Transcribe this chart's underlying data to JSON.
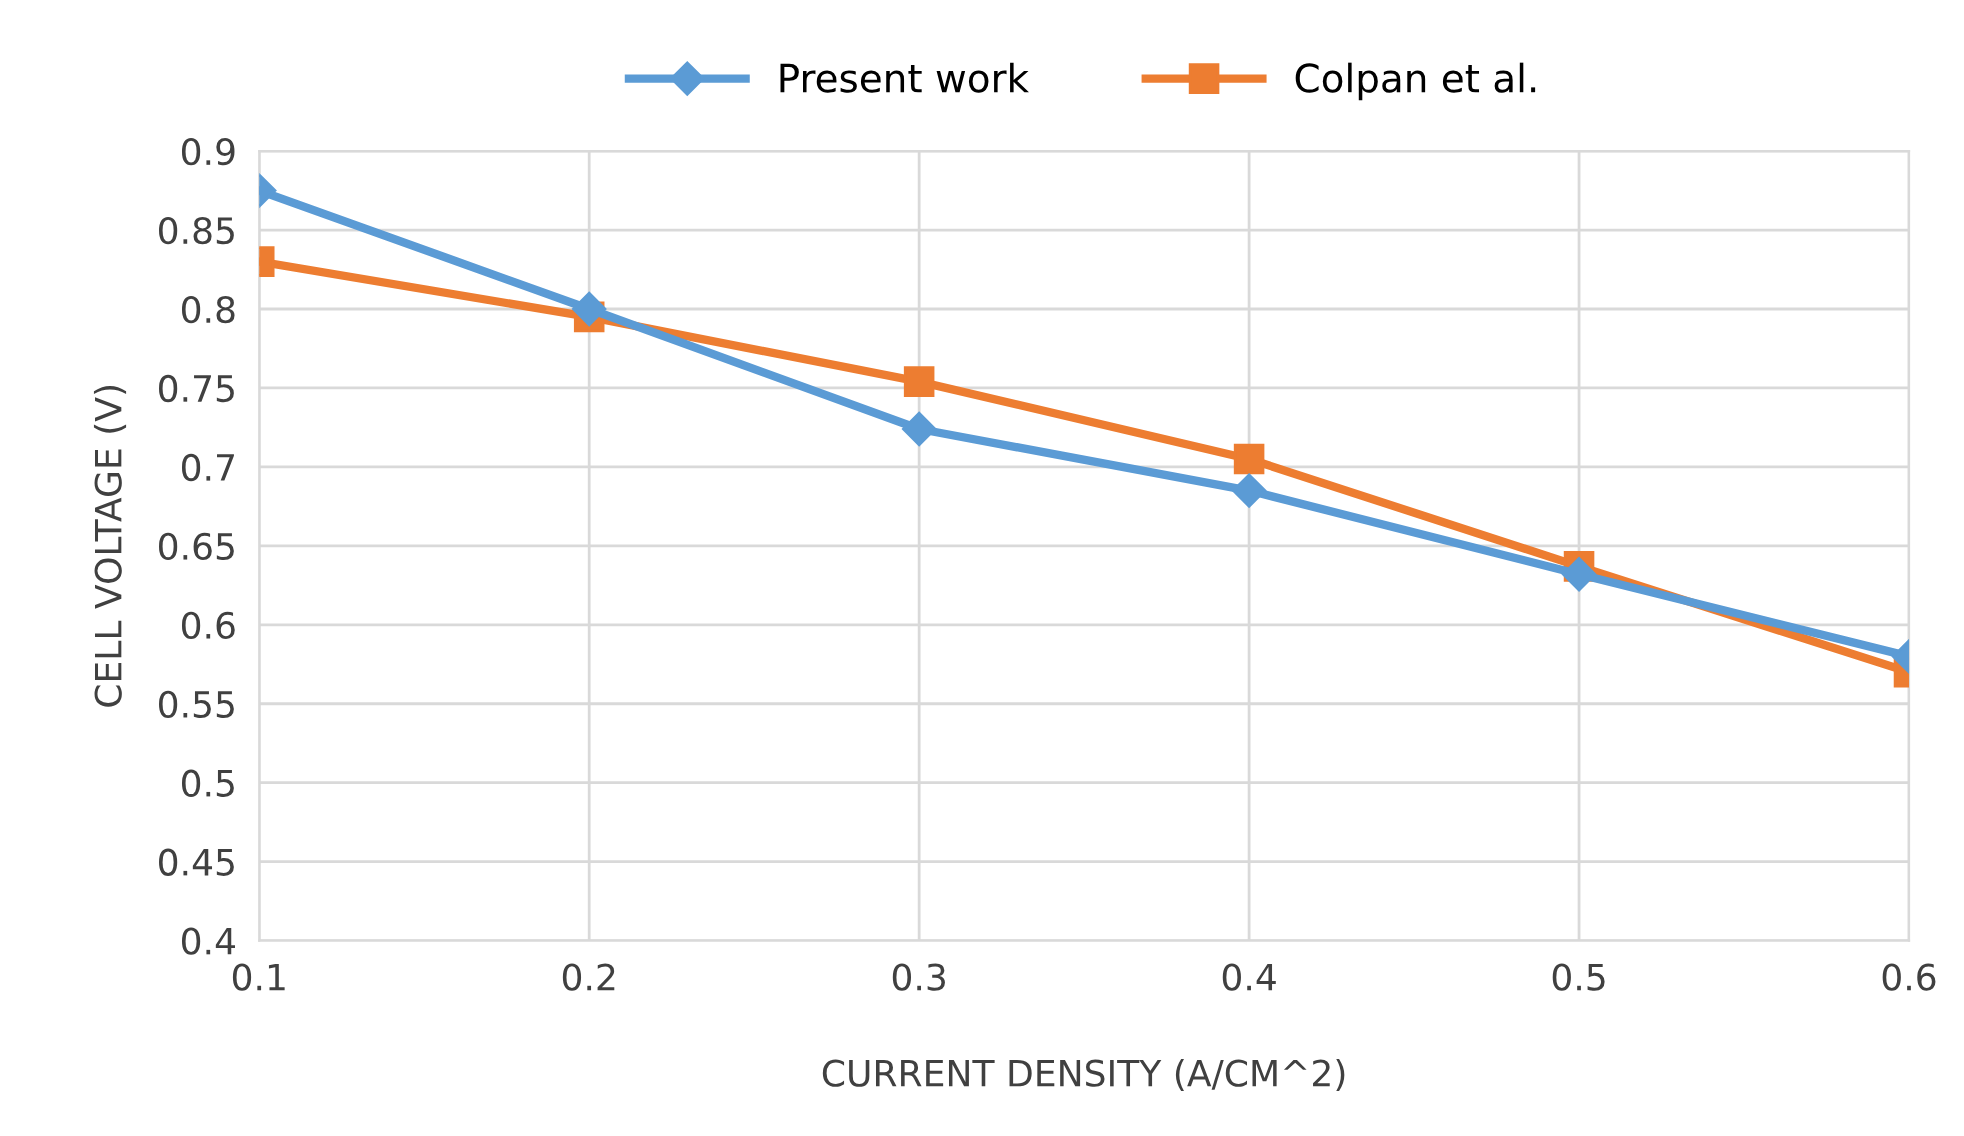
{
  "chart_data": {
    "type": "line",
    "xlabel": "CURRENT DENSITY (A/CM^2)",
    "ylabel": "CELL VOLTAGE (V)",
    "x": [
      0.1,
      0.2,
      0.3,
      0.4,
      0.5,
      0.6
    ],
    "series": [
      {
        "name": "Present work",
        "color": "#5b9bd5",
        "marker": "diamond",
        "values": [
          0.875,
          0.8,
          0.724,
          0.685,
          0.632,
          0.58
        ]
      },
      {
        "name": "Colpan et al.",
        "color": "#ed7d31",
        "marker": "square",
        "values": [
          0.83,
          0.795,
          0.754,
          0.705,
          0.637,
          0.57
        ]
      }
    ],
    "xlim": [
      0.1,
      0.6
    ],
    "xticks": [
      0.1,
      0.2,
      0.3,
      0.4,
      0.5,
      0.6
    ],
    "ylim": [
      0.4,
      0.9
    ],
    "yticks": [
      0.4,
      0.45,
      0.5,
      0.55,
      0.6,
      0.65,
      0.7,
      0.75,
      0.8,
      0.85,
      0.9
    ],
    "grid": true,
    "legend": "top",
    "line_style": "solid"
  }
}
